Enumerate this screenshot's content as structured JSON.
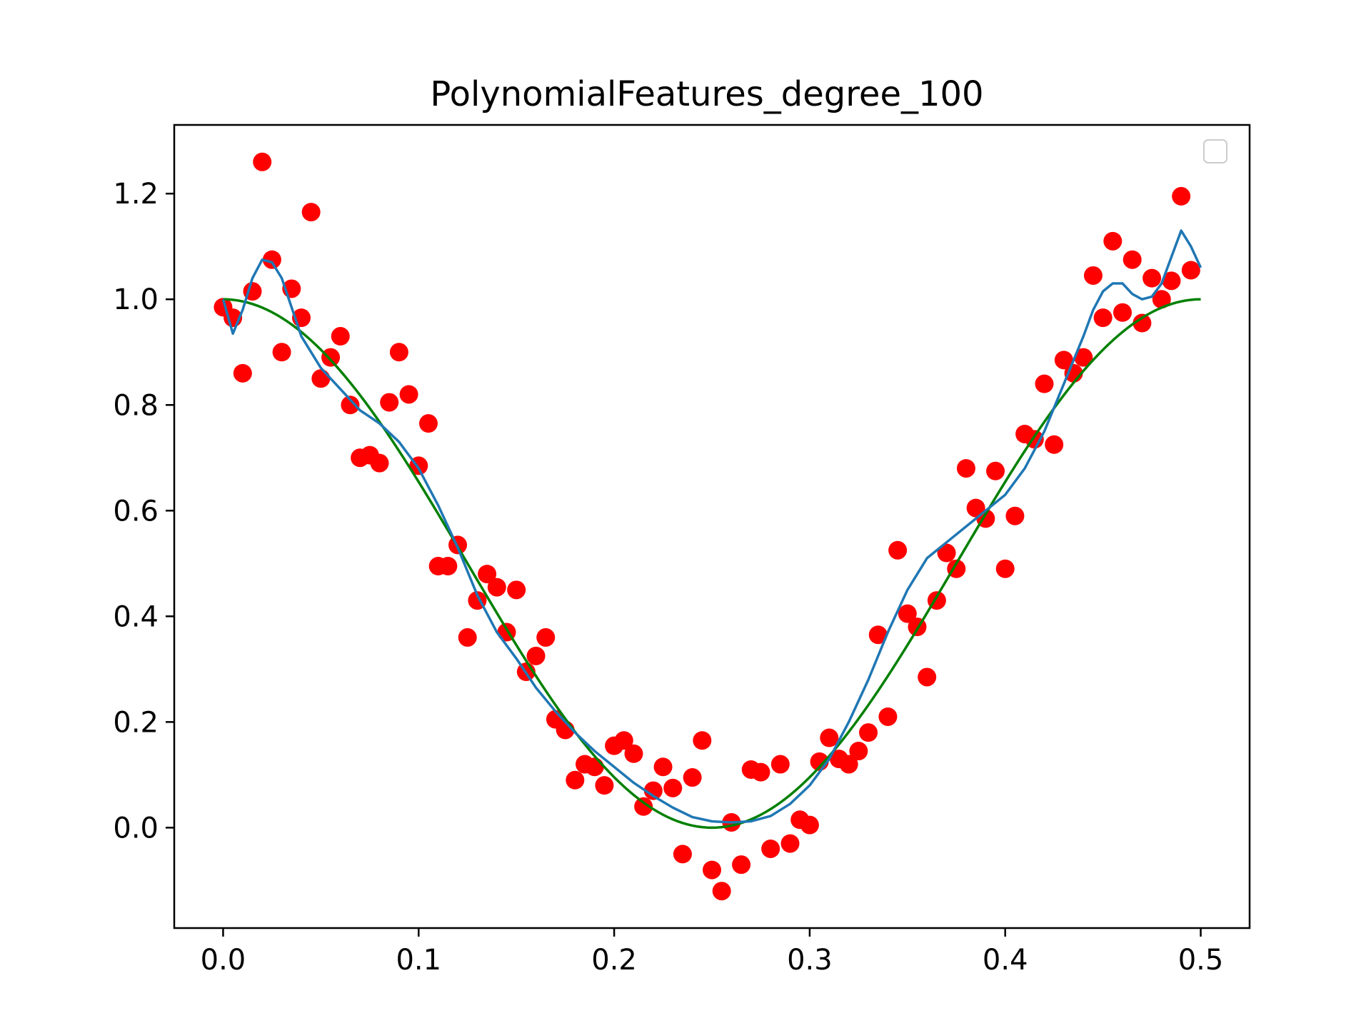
{
  "chart_data": {
    "type": "scatter",
    "title": "PolynomialFeatures_degree_100",
    "xlabel": "",
    "ylabel": "",
    "xlim": [
      -0.025,
      0.525
    ],
    "ylim": [
      -0.19,
      1.33
    ],
    "x_ticks": [
      0.0,
      0.1,
      0.2,
      0.3,
      0.4,
      0.5
    ],
    "x_tick_labels": [
      "0.0",
      "0.1",
      "0.2",
      "0.3",
      "0.4",
      "0.5"
    ],
    "y_ticks": [
      0.0,
      0.2,
      0.4,
      0.6,
      0.8,
      1.0,
      1.2
    ],
    "y_tick_labels": [
      "0.0",
      "0.2",
      "0.4",
      "0.6",
      "0.8",
      "1.0",
      "1.2"
    ],
    "grid": false,
    "legend": {
      "placement": "top-right",
      "entries": []
    },
    "colors": {
      "points": "#ff0000",
      "true_curve": "#008000",
      "fit_curve": "#1f77b4"
    },
    "series": [
      {
        "kind": "scatter",
        "points": [
          [
            0.0,
            0.985
          ],
          [
            0.005,
            0.965
          ],
          [
            0.01,
            0.86
          ],
          [
            0.015,
            1.015
          ],
          [
            0.02,
            1.26
          ],
          [
            0.025,
            1.075
          ],
          [
            0.03,
            0.9
          ],
          [
            0.035,
            1.02
          ],
          [
            0.04,
            0.965
          ],
          [
            0.045,
            1.165
          ],
          [
            0.05,
            0.85
          ],
          [
            0.055,
            0.89
          ],
          [
            0.06,
            0.93
          ],
          [
            0.065,
            0.8
          ],
          [
            0.07,
            0.7
          ],
          [
            0.075,
            0.705
          ],
          [
            0.08,
            0.69
          ],
          [
            0.085,
            0.805
          ],
          [
            0.09,
            0.9
          ],
          [
            0.095,
            0.82
          ],
          [
            0.1,
            0.685
          ],
          [
            0.105,
            0.765
          ],
          [
            0.11,
            0.495
          ],
          [
            0.115,
            0.495
          ],
          [
            0.12,
            0.535
          ],
          [
            0.125,
            0.36
          ],
          [
            0.13,
            0.43
          ],
          [
            0.135,
            0.48
          ],
          [
            0.14,
            0.455
          ],
          [
            0.145,
            0.37
          ],
          [
            0.15,
            0.45
          ],
          [
            0.155,
            0.295
          ],
          [
            0.16,
            0.325
          ],
          [
            0.165,
            0.36
          ],
          [
            0.17,
            0.205
          ],
          [
            0.175,
            0.185
          ],
          [
            0.18,
            0.09
          ],
          [
            0.185,
            0.12
          ],
          [
            0.19,
            0.115
          ],
          [
            0.195,
            0.08
          ],
          [
            0.2,
            0.155
          ],
          [
            0.205,
            0.165
          ],
          [
            0.21,
            0.14
          ],
          [
            0.215,
            0.04
          ],
          [
            0.22,
            0.07
          ],
          [
            0.225,
            0.115
          ],
          [
            0.23,
            0.075
          ],
          [
            0.235,
            -0.05
          ],
          [
            0.24,
            0.095
          ],
          [
            0.245,
            0.165
          ],
          [
            0.25,
            -0.08
          ],
          [
            0.255,
            -0.12
          ],
          [
            0.26,
            0.01
          ],
          [
            0.265,
            -0.07
          ],
          [
            0.27,
            0.11
          ],
          [
            0.275,
            0.105
          ],
          [
            0.28,
            -0.04
          ],
          [
            0.285,
            0.12
          ],
          [
            0.29,
            -0.03
          ],
          [
            0.295,
            0.015
          ],
          [
            0.3,
            0.005
          ],
          [
            0.305,
            0.125
          ],
          [
            0.31,
            0.17
          ],
          [
            0.315,
            0.13
          ],
          [
            0.32,
            0.12
          ],
          [
            0.325,
            0.145
          ],
          [
            0.33,
            0.18
          ],
          [
            0.335,
            0.365
          ],
          [
            0.34,
            0.21
          ],
          [
            0.345,
            0.525
          ],
          [
            0.35,
            0.405
          ],
          [
            0.355,
            0.38
          ],
          [
            0.36,
            0.285
          ],
          [
            0.365,
            0.43
          ],
          [
            0.37,
            0.52
          ],
          [
            0.375,
            0.49
          ],
          [
            0.38,
            0.68
          ],
          [
            0.385,
            0.605
          ],
          [
            0.39,
            0.585
          ],
          [
            0.395,
            0.675
          ],
          [
            0.4,
            0.49
          ],
          [
            0.405,
            0.59
          ],
          [
            0.41,
            0.745
          ],
          [
            0.415,
            0.735
          ],
          [
            0.42,
            0.84
          ],
          [
            0.425,
            0.725
          ],
          [
            0.43,
            0.885
          ],
          [
            0.435,
            0.86
          ],
          [
            0.44,
            0.89
          ],
          [
            0.445,
            1.045
          ],
          [
            0.45,
            0.965
          ],
          [
            0.455,
            1.11
          ],
          [
            0.46,
            0.975
          ],
          [
            0.465,
            1.075
          ],
          [
            0.47,
            0.955
          ],
          [
            0.475,
            1.04
          ],
          [
            0.48,
            1.0
          ],
          [
            0.485,
            1.035
          ],
          [
            0.49,
            1.195
          ],
          [
            0.495,
            1.055
          ]
        ]
      },
      {
        "kind": "line",
        "role": "true",
        "function": "cos^2(2*pi*x)",
        "x_range": [
          0.0,
          0.5
        ]
      },
      {
        "kind": "line",
        "role": "fit",
        "points": [
          [
            0.0,
            1.0
          ],
          [
            0.005,
            0.935
          ],
          [
            0.01,
            0.98
          ],
          [
            0.015,
            1.04
          ],
          [
            0.02,
            1.075
          ],
          [
            0.025,
            1.07
          ],
          [
            0.03,
            1.04
          ],
          [
            0.035,
            0.985
          ],
          [
            0.04,
            0.93
          ],
          [
            0.05,
            0.87
          ],
          [
            0.06,
            0.83
          ],
          [
            0.07,
            0.79
          ],
          [
            0.08,
            0.765
          ],
          [
            0.09,
            0.73
          ],
          [
            0.1,
            0.68
          ],
          [
            0.11,
            0.61
          ],
          [
            0.12,
            0.53
          ],
          [
            0.13,
            0.44
          ],
          [
            0.14,
            0.37
          ],
          [
            0.15,
            0.32
          ],
          [
            0.16,
            0.265
          ],
          [
            0.17,
            0.22
          ],
          [
            0.18,
            0.18
          ],
          [
            0.19,
            0.145
          ],
          [
            0.2,
            0.115
          ],
          [
            0.21,
            0.085
          ],
          [
            0.22,
            0.06
          ],
          [
            0.23,
            0.038
          ],
          [
            0.24,
            0.02
          ],
          [
            0.25,
            0.012
          ],
          [
            0.26,
            0.01
          ],
          [
            0.27,
            0.012
          ],
          [
            0.28,
            0.022
          ],
          [
            0.29,
            0.045
          ],
          [
            0.3,
            0.08
          ],
          [
            0.31,
            0.13
          ],
          [
            0.32,
            0.2
          ],
          [
            0.33,
            0.28
          ],
          [
            0.34,
            0.37
          ],
          [
            0.35,
            0.45
          ],
          [
            0.36,
            0.51
          ],
          [
            0.37,
            0.54
          ],
          [
            0.38,
            0.57
          ],
          [
            0.39,
            0.6
          ],
          [
            0.4,
            0.63
          ],
          [
            0.41,
            0.68
          ],
          [
            0.42,
            0.75
          ],
          [
            0.43,
            0.84
          ],
          [
            0.44,
            0.93
          ],
          [
            0.445,
            0.98
          ],
          [
            0.45,
            1.015
          ],
          [
            0.455,
            1.03
          ],
          [
            0.46,
            1.03
          ],
          [
            0.465,
            1.01
          ],
          [
            0.47,
            1.0
          ],
          [
            0.475,
            1.005
          ],
          [
            0.48,
            1.03
          ],
          [
            0.485,
            1.08
          ],
          [
            0.49,
            1.13
          ],
          [
            0.495,
            1.1
          ],
          [
            0.5,
            1.06
          ]
        ]
      }
    ]
  }
}
